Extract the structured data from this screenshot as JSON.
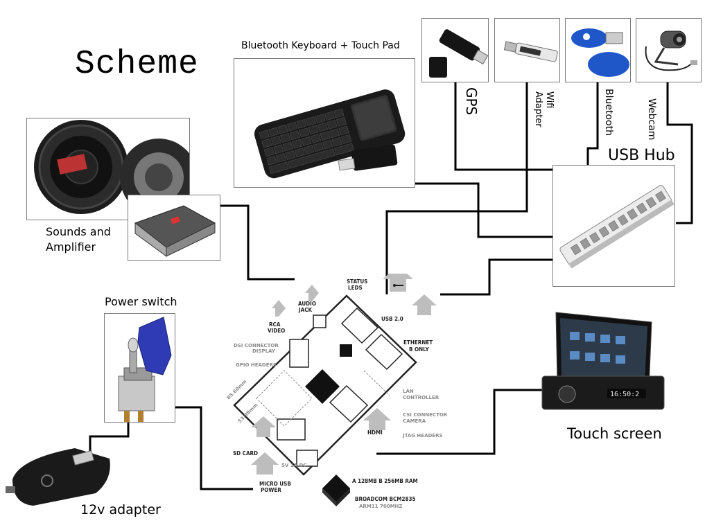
{
  "title": "Scheme",
  "labels": {
    "keyboard": "Bluetooth Keyboard + Touch Pad",
    "sounds": "Sounds and\nAmplifier",
    "power_switch": "Power switch",
    "adapter": "12v adapter",
    "usb_hub": "USB Hub",
    "touch_screen": "Touch screen",
    "gps": "GPS",
    "wifi": "Wifi\nAdapter",
    "bluetooth": "Bluetooth",
    "webcam": "Webcam"
  },
  "pi": {
    "status_leds": "STATUS\nLEDS",
    "audio_jack": "AUDIO\nJACK",
    "rca_video": "RCA\nVIDEO",
    "usb": "USB 2.0",
    "ethernet": "ETHERNET",
    "ethernet_sub": "B ONLY",
    "dsi": "DSI CONNECTOR\nDISPLAY",
    "gpio": "GPIO HEADERS",
    "lan": "LAN\nCONTROLLER",
    "csi": "CSI CONNECTOR\nCAMERA",
    "jtag": "JTAG HEADERS",
    "hdmi": "HDMI",
    "sd_card": "SD CARD",
    "micro_usb": "MICRO USB\nPOWER",
    "micro_usb_spec": "5V 1A DC",
    "dim1": "85.60mm",
    "dim2": "53.98mm",
    "ram": "A 128MB  B 256MB  RAM",
    "soc": "BROADCOM BCM2835",
    "arm": "ARM11 700MHZ",
    "screen_clock": "16:50:2"
  },
  "colors": {
    "wire": "#000000",
    "box_border": "#7a7a7a",
    "pi_grey": "#bdbdbd",
    "chip": "#111111",
    "switch_cover": "#2f3ab5",
    "bluetooth_blue": "#1f57c9"
  }
}
